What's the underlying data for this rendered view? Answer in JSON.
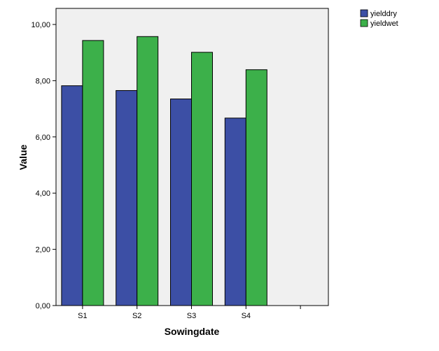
{
  "chart_data": {
    "type": "bar",
    "title": "",
    "xlabel": "Sowingdate",
    "ylabel": "Value",
    "categories": [
      "S1",
      "S2",
      "S3",
      "S4",
      ""
    ],
    "series": [
      {
        "name": "yielddry",
        "values": [
          7.82,
          7.65,
          7.35,
          6.67,
          null
        ]
      },
      {
        "name": "yieldwet",
        "values": [
          9.43,
          9.57,
          9.01,
          8.39,
          null
        ]
      }
    ],
    "ylim": [
      0,
      10
    ],
    "yticks": [
      "0,00",
      "2,00",
      "4,00",
      "6,00",
      "8,00",
      "10,00"
    ],
    "grid": false,
    "legend_position": "top-right",
    "colors": {
      "yielddry": "#3c4fa5",
      "yieldwet": "#3cb04a",
      "plot_background": "#f0f0f0"
    }
  }
}
